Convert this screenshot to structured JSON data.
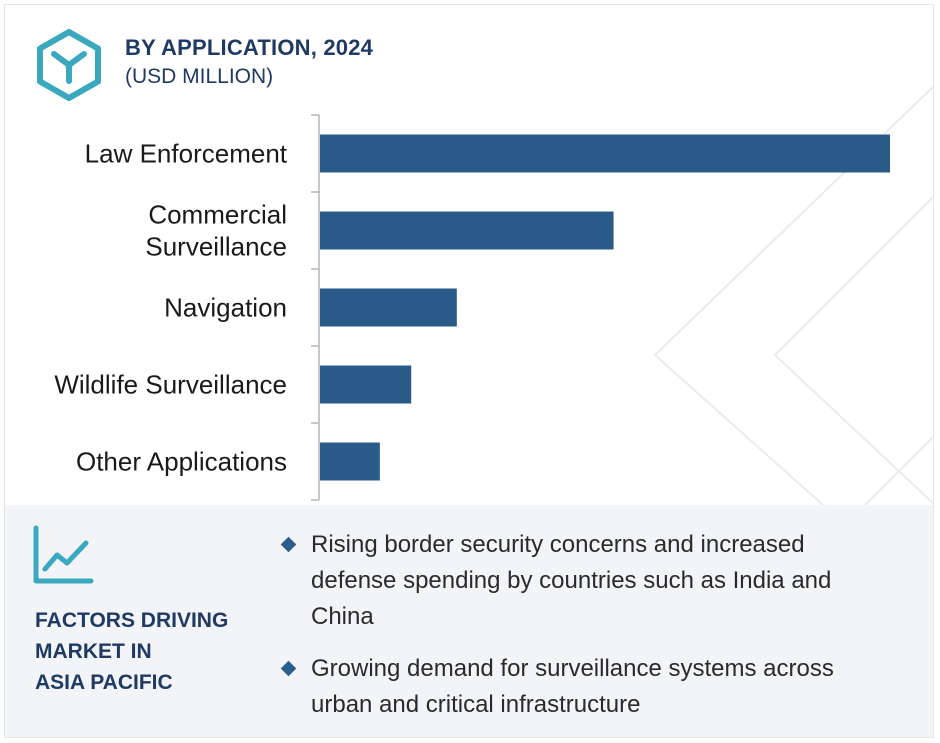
{
  "header": {
    "title": "BY APPLICATION, 2024",
    "subtitle": "(USD MILLION)",
    "logo_icon": "hexagon-y-logo-icon"
  },
  "chart_data": {
    "type": "bar",
    "orientation": "horizontal",
    "categories": [
      [
        "Law Enforcement"
      ],
      [
        "Commercial",
        "Surveillance"
      ],
      [
        "Navigation"
      ],
      [
        "Wildlife Surveillance"
      ],
      [
        "Other Applications"
      ]
    ],
    "values": [
      100,
      51.5,
      24,
      16,
      10.5
    ],
    "value_note": "relative; no numeric axis shown",
    "xlim": [
      0,
      100
    ],
    "bar_color": "#2a5a88",
    "grid": false,
    "legend": "none"
  },
  "factors": {
    "icon": "line-chart-trend-icon",
    "title_lines": [
      "FACTORS DRIVING",
      "MARKET IN",
      "ASIA PACIFIC"
    ],
    "items": [
      {
        "lines": [
          "Rising border security concerns and increased",
          "defense spending by countries such as India and",
          "China"
        ]
      },
      {
        "lines": [
          "Growing demand for surveillance systems across",
          "urban and critical infrastructure"
        ]
      }
    ]
  },
  "colors": {
    "accent": "#3aa9c0",
    "title": "#1f3a63",
    "bar": "#2a5a88",
    "panel": "#f2f4f7"
  }
}
